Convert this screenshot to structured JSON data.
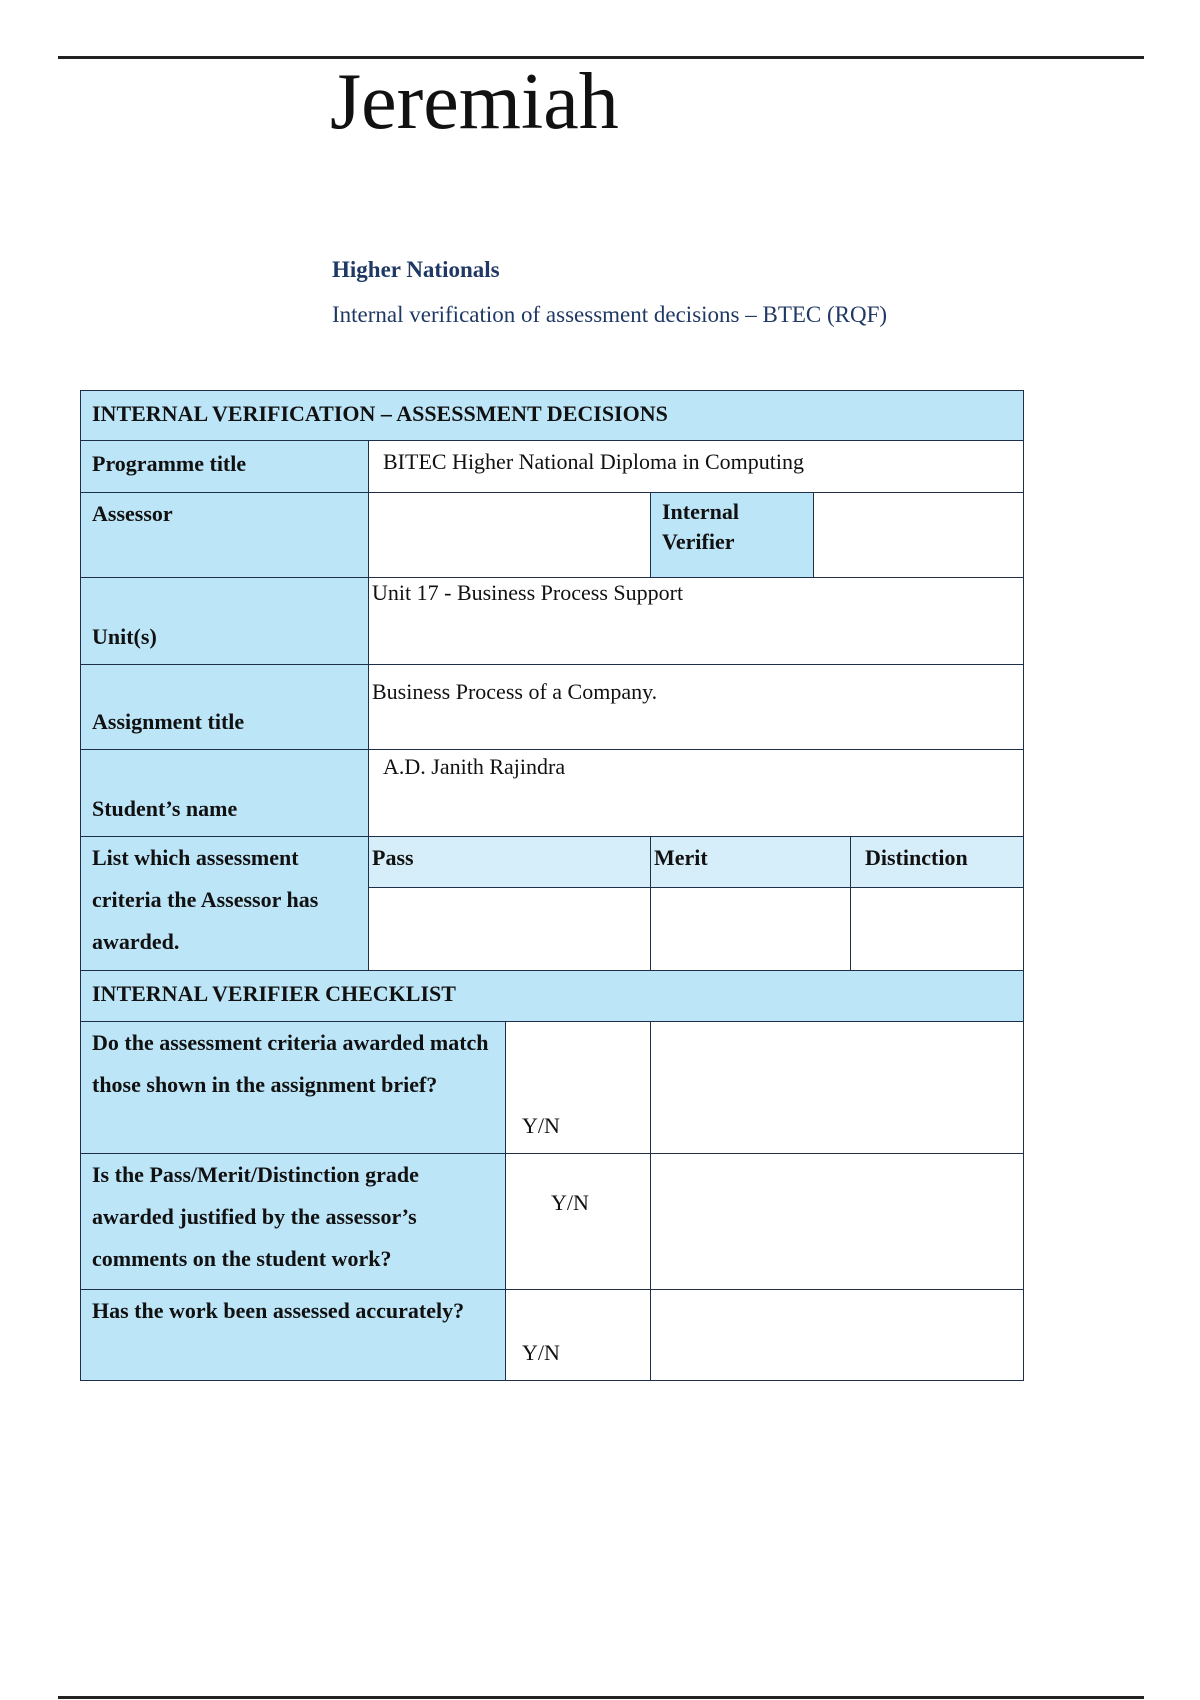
{
  "header": {
    "title": "Jeremiah",
    "org": "Higher Nationals",
    "subtitle": "Internal verification of assessment decisions – BTEC (RQF)"
  },
  "decisions": {
    "heading": "INTERNAL VERIFICATION – ASSESSMENT DECISIONS",
    "programme_label": "Programme title",
    "programme_value": "BITEC Higher National Diploma in Computing",
    "assessor_label": "Assessor",
    "assessor_value": "",
    "verifier_label": "Internal Verifier",
    "verifier_value": "",
    "unit_label": "Unit(s)",
    "unit_value": "Unit 17 - Business Process Support",
    "assignment_label": "Assignment title",
    "assignment_value": "Business Process of a Company.",
    "student_label": "Student’s name",
    "student_value": "A.D. Janith Rajindra",
    "criteria_label": "List which assessment criteria the Assessor has awarded.",
    "pass_label": "Pass",
    "merit_label": "Merit",
    "distinction_label": "Distinction",
    "pass_value": "",
    "merit_value": "",
    "distinction_value": ""
  },
  "checklist": {
    "heading": "INTERNAL VERIFIER CHECKLIST",
    "items": [
      {
        "question": "Do the assessment criteria awarded match those shown in the assignment brief?",
        "answer": "Y/N",
        "comment": ""
      },
      {
        "question": "Is the Pass/Merit/Distinction grade awarded justified by the assessor’s comments on the student work?",
        "answer": "Y/N",
        "comment": ""
      },
      {
        "question": "Has the work been assessed accurately?",
        "answer": "Y/N",
        "comment": ""
      }
    ]
  },
  "colors": {
    "label_fill": "#bde5f8",
    "heading_text": "#1f3864",
    "border": "#1f2f4a"
  }
}
